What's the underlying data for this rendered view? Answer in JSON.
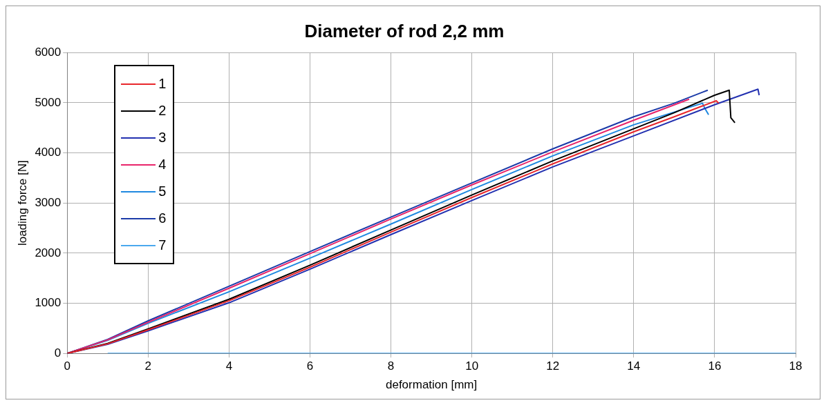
{
  "chart_data": {
    "type": "line",
    "title": "Diameter of rod 2,2 mm",
    "xlabel": "deformation [mm]",
    "ylabel": "loading force [N]",
    "xlim": [
      0,
      18
    ],
    "xticks": [
      0,
      2,
      4,
      6,
      8,
      10,
      12,
      14,
      16,
      18
    ],
    "ylim": [
      0,
      6000
    ],
    "yticks": [
      0,
      1000,
      2000,
      3000,
      4000,
      5000,
      6000
    ],
    "grid": true,
    "legend": "top left",
    "series": [
      {
        "name": "1",
        "color": "#e8262b",
        "x": [
          0,
          1,
          2,
          4,
          6,
          8,
          10,
          12,
          14,
          15,
          16.04,
          16.1
        ],
        "values": [
          0,
          190,
          470,
          1050,
          1720,
          2420,
          3110,
          3780,
          4420,
          4720,
          5040,
          4990
        ]
      },
      {
        "name": "2",
        "color": "#000000",
        "x": [
          0,
          1,
          2,
          4,
          6,
          8,
          10,
          12,
          14,
          15,
          16,
          16.36,
          16.4,
          16.5
        ],
        "values": [
          0,
          200,
          490,
          1080,
          1760,
          2460,
          3160,
          3840,
          4480,
          4800,
          5150,
          5250,
          4700,
          4600
        ]
      },
      {
        "name": "3",
        "color": "#2230b0",
        "x": [
          0,
          1,
          2,
          4,
          6,
          8,
          10,
          12,
          14,
          16,
          17.07,
          17.1
        ],
        "values": [
          0,
          180,
          450,
          1010,
          1680,
          2370,
          3050,
          3720,
          4340,
          4960,
          5270,
          5150
        ]
      },
      {
        "name": "4",
        "color": "#e8246a",
        "x": [
          0,
          1,
          2,
          4,
          6,
          8,
          10,
          12,
          14,
          15.37
        ],
        "values": [
          0,
          270,
          620,
          1300,
          1990,
          2680,
          3360,
          4020,
          4650,
          5070
        ]
      },
      {
        "name": "5",
        "color": "#1e88e0",
        "x": [
          0,
          1,
          2,
          4,
          6,
          8,
          10,
          12,
          14,
          15.7,
          15.75,
          15.85
        ],
        "values": [
          0,
          260,
          600,
          1230,
          1900,
          2580,
          3270,
          3940,
          4560,
          4990,
          4900,
          4760
        ]
      },
      {
        "name": "6",
        "color": "#1a3aa8",
        "x": [
          0,
          1,
          2,
          4,
          6,
          8,
          10,
          12,
          14,
          15,
          15.83
        ],
        "values": [
          0,
          280,
          650,
          1340,
          2030,
          2720,
          3400,
          4080,
          4720,
          4990,
          5250
        ]
      },
      {
        "name": "7",
        "color": "#4aa8ee",
        "x": [
          1,
          18
        ],
        "values": [
          0,
          0
        ]
      }
    ]
  }
}
